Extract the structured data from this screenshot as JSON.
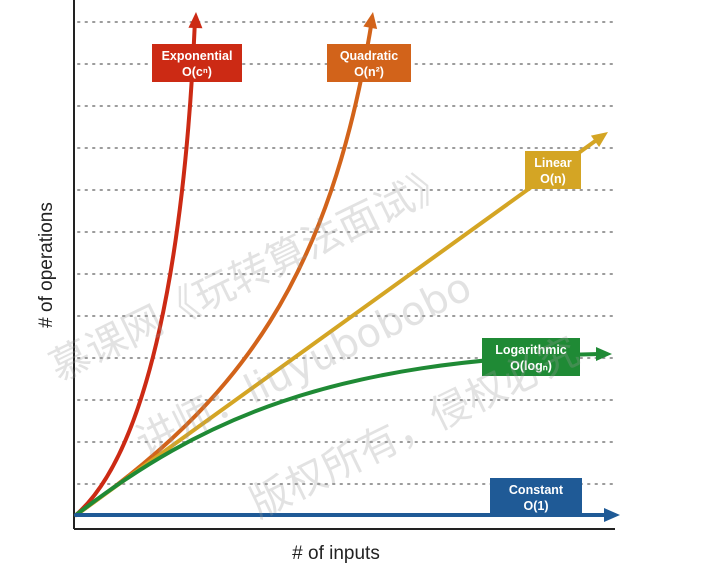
{
  "chart_data": {
    "type": "line",
    "xlabel": "# of inputs",
    "ylabel": "# of operations",
    "grid": "horizontal dotted",
    "series": [
      {
        "name": "Exponential",
        "label_line1": "Exponential",
        "label_line2": "O(cⁿ)",
        "color": "#cc2a14",
        "shape": "steep-exponential"
      },
      {
        "name": "Quadratic",
        "label_line1": "Quadratic",
        "label_line2": "O(n²)",
        "color": "#d2631a",
        "shape": "quadratic"
      },
      {
        "name": "Linear",
        "label_line1": "Linear",
        "label_line2": "O(n)",
        "color": "#d4a524",
        "shape": "linear"
      },
      {
        "name": "Logarithmic",
        "label_line1": "Logarithmic",
        "label_line2": "O(logₙ)",
        "color": "#1f8a35",
        "shape": "logarithmic"
      },
      {
        "name": "Constant",
        "label_line1": "Constant",
        "label_line2": "O(1)",
        "color": "#1f5a96",
        "shape": "flat"
      }
    ]
  },
  "watermark": {
    "line1": "慕课网《玩转算法面试》",
    "line2": "讲师：liuyubobobo",
    "line3": "版权所有，侵权必究"
  }
}
